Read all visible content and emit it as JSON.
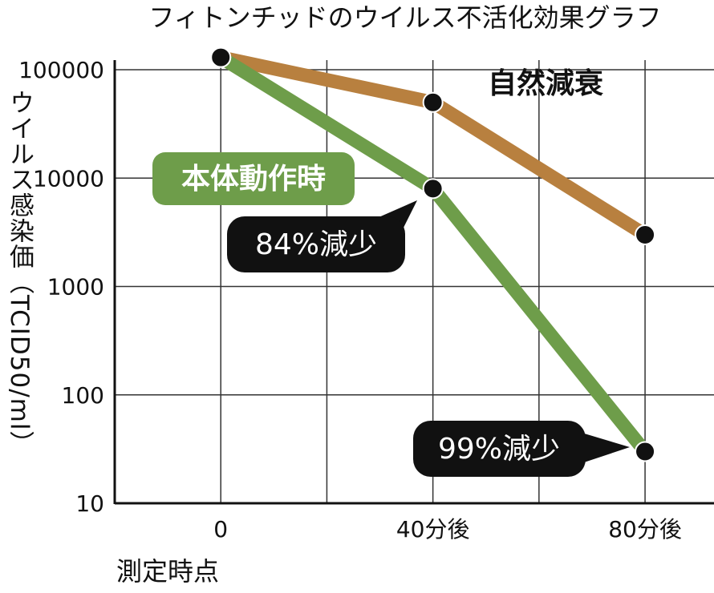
{
  "chart_data": {
    "type": "line",
    "title": "フィトンチッドのウイルス不活化効果グラフ",
    "y_label": "ウイルス感染価（TCID50/ml）",
    "x_label": "測定時点",
    "x": [
      0,
      40,
      80
    ],
    "xlim": [
      -20,
      93
    ],
    "xticks": [
      0,
      {
        "value": 40,
        "label": "40分後"
      },
      {
        "value": 80,
        "label": "80分後"
      }
    ],
    "xgrid": [
      20,
      60
    ],
    "ylim": [
      10,
      100000
    ],
    "yticks": [
      10,
      100,
      1000,
      10000,
      100000
    ],
    "log_y": true,
    "grid": true,
    "series": [
      {
        "name": "自然減衰",
        "color": "#b8803f",
        "values": [
          130000,
          50000,
          3000
        ]
      },
      {
        "name": "本体動作時",
        "color": "#6e9d4a",
        "values": [
          130000,
          8000,
          30
        ]
      }
    ],
    "annotations": [
      {
        "text": "84%減少"
      },
      {
        "text": "99%減少"
      }
    ]
  }
}
